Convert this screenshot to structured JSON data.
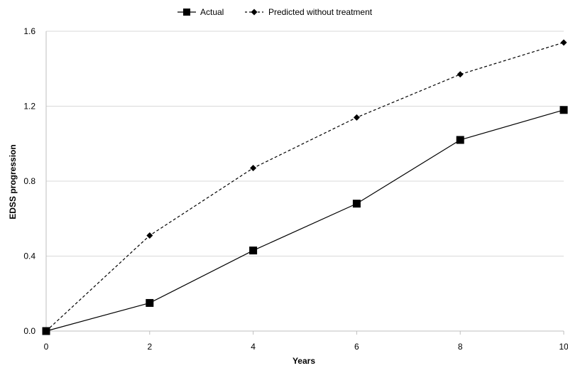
{
  "chart_data": {
    "type": "line",
    "title": "",
    "xlabel": "Years",
    "ylabel": "EDSS progression",
    "x": [
      0,
      2,
      4,
      6,
      8,
      10
    ],
    "xlim": [
      0,
      10
    ],
    "ylim": [
      0,
      1.6
    ],
    "x_ticks": [
      "0",
      "2",
      "4",
      "6",
      "8",
      "10"
    ],
    "y_ticks": [
      "0.0",
      "0.4",
      "0.8",
      "1.2",
      "1.6"
    ],
    "grid": "horizontal",
    "legend_position": "top-center",
    "series": [
      {
        "name": "Actual",
        "values": [
          0,
          0.15,
          0.43,
          0.68,
          1.02,
          1.18
        ],
        "marker": "square",
        "line_style": "solid",
        "color": "#000000"
      },
      {
        "name": "Predicted without treatment",
        "values": [
          0,
          0.51,
          0.87,
          1.14,
          1.37,
          1.54
        ],
        "marker": "diamond",
        "line_style": "dashed",
        "color": "#000000"
      }
    ]
  }
}
